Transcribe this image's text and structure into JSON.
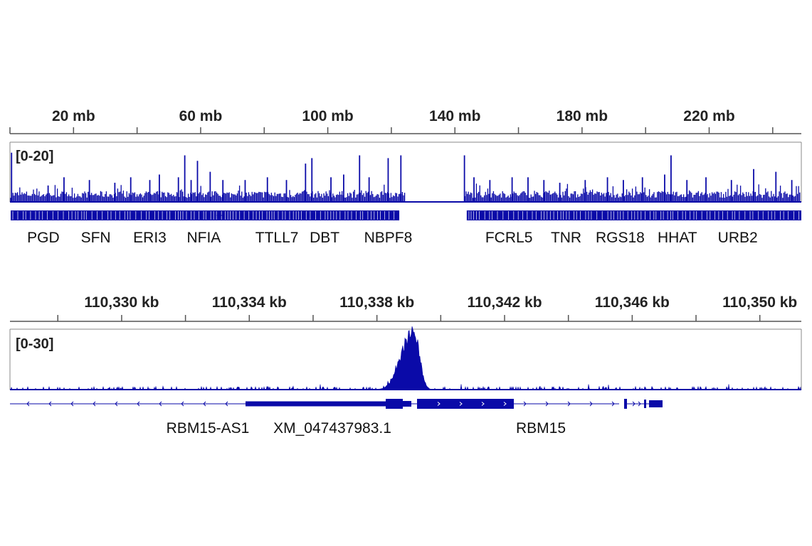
{
  "colors": {
    "signal": "#0a0aa8",
    "axis": "#555555",
    "text": "#222222"
  },
  "chart_data": [
    {
      "type": "area",
      "name": "whole-genome",
      "axis_unit": "mb",
      "xlim": [
        0,
        249
      ],
      "tick_labels": [
        "20 mb",
        "60 mb",
        "100 mb",
        "140 mb",
        "180 mb",
        "220 mb"
      ],
      "tick_values": [
        20,
        60,
        100,
        140,
        180,
        220
      ],
      "data_range_label": "[0-20]",
      "ylim": [
        0,
        20
      ],
      "gap_region": [
        124.5,
        143
      ],
      "peaks": [
        {
          "x": 0.5,
          "y": 18
        },
        {
          "x": 12,
          "y": 6
        },
        {
          "x": 17,
          "y": 9
        },
        {
          "x": 25,
          "y": 8
        },
        {
          "x": 33,
          "y": 7
        },
        {
          "x": 38,
          "y": 9
        },
        {
          "x": 44,
          "y": 8
        },
        {
          "x": 47,
          "y": 10
        },
        {
          "x": 53,
          "y": 9
        },
        {
          "x": 55,
          "y": 17
        },
        {
          "x": 57,
          "y": 8
        },
        {
          "x": 59,
          "y": 15
        },
        {
          "x": 63,
          "y": 11
        },
        {
          "x": 67,
          "y": 8
        },
        {
          "x": 74,
          "y": 8
        },
        {
          "x": 81,
          "y": 9
        },
        {
          "x": 87,
          "y": 8
        },
        {
          "x": 93,
          "y": 14
        },
        {
          "x": 95,
          "y": 16
        },
        {
          "x": 101,
          "y": 9
        },
        {
          "x": 105,
          "y": 10
        },
        {
          "x": 110,
          "y": 17
        },
        {
          "x": 113,
          "y": 9
        },
        {
          "x": 119,
          "y": 16
        },
        {
          "x": 123,
          "y": 17
        },
        {
          "x": 143,
          "y": 17
        },
        {
          "x": 146,
          "y": 9
        },
        {
          "x": 151,
          "y": 8
        },
        {
          "x": 158,
          "y": 9
        },
        {
          "x": 163,
          "y": 9
        },
        {
          "x": 168,
          "y": 8
        },
        {
          "x": 173,
          "y": 7
        },
        {
          "x": 181,
          "y": 8
        },
        {
          "x": 188,
          "y": 9
        },
        {
          "x": 193,
          "y": 8
        },
        {
          "x": 199,
          "y": 9
        },
        {
          "x": 206,
          "y": 10
        },
        {
          "x": 208,
          "y": 17
        },
        {
          "x": 213,
          "y": 8
        },
        {
          "x": 219,
          "y": 9
        },
        {
          "x": 227,
          "y": 8
        },
        {
          "x": 234,
          "y": 12
        },
        {
          "x": 241,
          "y": 11
        },
        {
          "x": 246,
          "y": 8
        }
      ],
      "genes": [
        {
          "label": "PGD",
          "x": 10.5
        },
        {
          "label": "SFN",
          "x": 27
        },
        {
          "label": "ERI3",
          "x": 44
        },
        {
          "label": "NFIA",
          "x": 61
        },
        {
          "label": "TTLL7",
          "x": 84
        },
        {
          "label": "DBT",
          "x": 99
        },
        {
          "label": "NBPF8",
          "x": 119
        },
        {
          "label": "FCRL5",
          "x": 157
        },
        {
          "label": "TNR",
          "x": 175
        },
        {
          "label": "RGS18",
          "x": 192
        },
        {
          "label": "HHAT",
          "x": 210
        },
        {
          "label": "URB2",
          "x": 229
        }
      ]
    },
    {
      "type": "area",
      "name": "zoomed-locus",
      "axis_unit": "kb",
      "xlim": [
        110326.5,
        110351.3
      ],
      "tick_labels": [
        "110,330 kb",
        "110,334 kb",
        "110,338 kb",
        "110,342 kb",
        "110,346 kb",
        "110,350 kb"
      ],
      "tick_values": [
        110330,
        110334,
        110338,
        110342,
        110346,
        110350
      ],
      "data_range_label": "[0-30]",
      "ylim": [
        0,
        30
      ],
      "main_peak": {
        "x": 110339.2,
        "y": 28
      },
      "genes": [
        {
          "label": "RBM15-AS1",
          "x": 110330.7
        },
        {
          "label": "XM_047437983.1",
          "x": 110333.5
        },
        {
          "label": "RBM15",
          "x": 110341.9
        }
      ]
    }
  ]
}
